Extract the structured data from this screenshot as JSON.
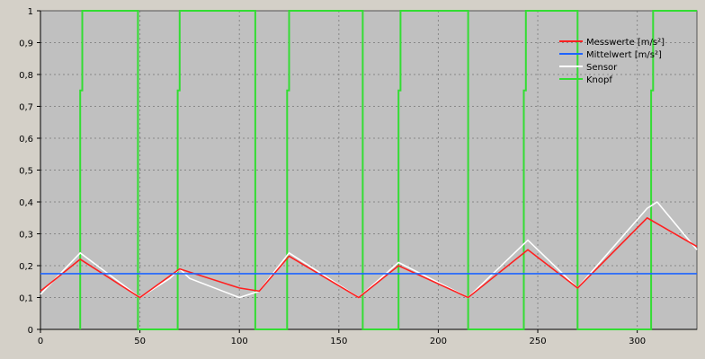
{
  "chart_data": {
    "type": "line",
    "title": "",
    "xlabel": "",
    "ylabel": "",
    "xlim": [
      0,
      330
    ],
    "ylim": [
      0,
      1
    ],
    "grid": true,
    "legend_position": "top-right",
    "x_ticks": [
      "0",
      "50",
      "100",
      "150",
      "200",
      "250",
      "300"
    ],
    "x_tick_values": [
      0,
      50,
      100,
      150,
      200,
      250,
      300
    ],
    "y_ticks": [
      "0",
      "0,1",
      "0,2",
      "0,3",
      "0,4",
      "0,5",
      "0,6",
      "0,7",
      "0,8",
      "0,9",
      "1"
    ],
    "y_tick_values": [
      0,
      0.1,
      0.2,
      0.3,
      0.4,
      0.5,
      0.6,
      0.7,
      0.8,
      0.9,
      1
    ],
    "series": [
      {
        "name": "Messwerte [m/s²]",
        "color": "#ff2020",
        "x": [
          0,
          20,
          50,
          70,
          100,
          110,
          125,
          160,
          180,
          215,
          245,
          270,
          305,
          330
        ],
        "y": [
          0.12,
          0.22,
          0.1,
          0.19,
          0.13,
          0.12,
          0.23,
          0.1,
          0.2,
          0.1,
          0.25,
          0.13,
          0.35,
          0.26
        ]
      },
      {
        "name": "Mittelwert [m/s²]",
        "color": "#1e64ff",
        "x": [
          0,
          330
        ],
        "y": [
          0.175,
          0.175
        ]
      },
      {
        "name": "Sensor",
        "color": "#ffffff",
        "x": [
          0,
          20,
          50,
          65,
          70,
          75,
          100,
          110,
          125,
          160,
          180,
          215,
          245,
          270,
          305,
          310,
          330
        ],
        "y": [
          0.11,
          0.24,
          0.1,
          0.16,
          0.19,
          0.16,
          0.1,
          0.12,
          0.24,
          0.1,
          0.21,
          0.1,
          0.28,
          0.13,
          0.38,
          0.4,
          0.25
        ]
      },
      {
        "name": "Knopf",
        "color": "#33dd33",
        "x": [
          20,
          20,
          21,
          21,
          49,
          49,
          69,
          69,
          70,
          70,
          108,
          108,
          124,
          124,
          125,
          125,
          162,
          162,
          180,
          180,
          181,
          181,
          215,
          215,
          243,
          243,
          244,
          244,
          270,
          270,
          307,
          307,
          308,
          308,
          330
        ],
        "y": [
          0,
          0.75,
          0.75,
          1,
          1,
          0,
          0,
          0.75,
          0.75,
          1,
          1,
          0,
          0,
          0.75,
          0.75,
          1,
          1,
          0,
          0,
          0.75,
          0.75,
          1,
          1,
          0,
          0,
          0.75,
          0.75,
          1,
          1,
          0,
          0,
          0.75,
          0.75,
          1,
          1
        ]
      }
    ]
  }
}
